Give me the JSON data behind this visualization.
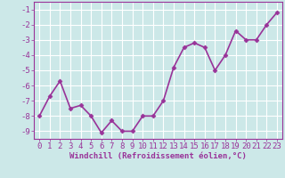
{
  "x": [
    0,
    1,
    2,
    3,
    4,
    5,
    6,
    7,
    8,
    9,
    10,
    11,
    12,
    13,
    14,
    15,
    16,
    17,
    18,
    19,
    20,
    21,
    22,
    23
  ],
  "y": [
    -8.0,
    -6.7,
    -5.7,
    -7.5,
    -7.3,
    -8.0,
    -9.1,
    -8.3,
    -9.0,
    -9.0,
    -8.0,
    -8.0,
    -7.0,
    -4.8,
    -3.5,
    -3.2,
    -3.5,
    -5.0,
    -4.0,
    -2.4,
    -3.0,
    -3.0,
    -2.0,
    -1.2
  ],
  "line_color": "#993399",
  "marker": "D",
  "marker_size": 2.5,
  "bg_color": "#cce8e8",
  "grid_color": "#ffffff",
  "xlabel": "Windchill (Refroidissement éolien,°C)",
  "xlabel_color": "#993399",
  "tick_color": "#993399",
  "ylim": [
    -9.5,
    -0.5
  ],
  "xlim": [
    -0.5,
    23.5
  ],
  "yticks": [
    -9,
    -8,
    -7,
    -6,
    -5,
    -4,
    -3,
    -2,
    -1
  ],
  "xticks": [
    0,
    1,
    2,
    3,
    4,
    5,
    6,
    7,
    8,
    9,
    10,
    11,
    12,
    13,
    14,
    15,
    16,
    17,
    18,
    19,
    20,
    21,
    22,
    23
  ],
  "line_width": 1.2,
  "tick_fontsize": 6.5,
  "xlabel_fontsize": 6.5
}
